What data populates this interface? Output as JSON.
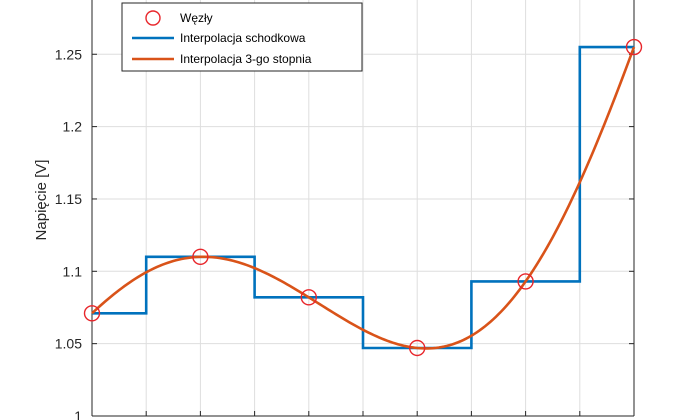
{
  "chart_data": {
    "type": "line",
    "ylabel": "Napięcie [V]",
    "xlabel": "",
    "ylim": [
      1.0,
      1.2875
    ],
    "xlim": [
      0,
      10
    ],
    "x_gridlines": [
      0,
      1,
      2,
      3,
      4,
      5,
      6,
      7,
      8,
      9,
      10
    ],
    "y_ticks": [
      1.0,
      1.05,
      1.1,
      1.15,
      1.2,
      1.25
    ],
    "y_tick_labels": [
      "1",
      "1.05",
      "1.1",
      "1.15",
      "1.2",
      "1.25"
    ],
    "grid": true,
    "legend_position": "top-left",
    "colors": {
      "nodes": "#e8262b",
      "step": "#0072bd",
      "cubic": "#d95319",
      "grid": "#dedede",
      "axes": "#262626"
    },
    "series": [
      {
        "name": "Węzły",
        "kind": "markers",
        "x": [
          0,
          2,
          4,
          6,
          8,
          10
        ],
        "y": [
          1.071,
          1.11,
          1.082,
          1.047,
          1.093,
          1.255
        ]
      },
      {
        "name": "Interpolacja schodkowa",
        "kind": "step",
        "x": [
          0,
          2,
          4,
          6,
          8,
          10
        ],
        "y": [
          1.071,
          1.11,
          1.082,
          1.047,
          1.093,
          1.255
        ]
      },
      {
        "name": "Interpolacja 3-go stopnia",
        "kind": "spline",
        "x": [
          0,
          2,
          4,
          6,
          8,
          10
        ],
        "y": [
          1.071,
          1.11,
          1.082,
          1.047,
          1.093,
          1.255
        ]
      }
    ]
  }
}
